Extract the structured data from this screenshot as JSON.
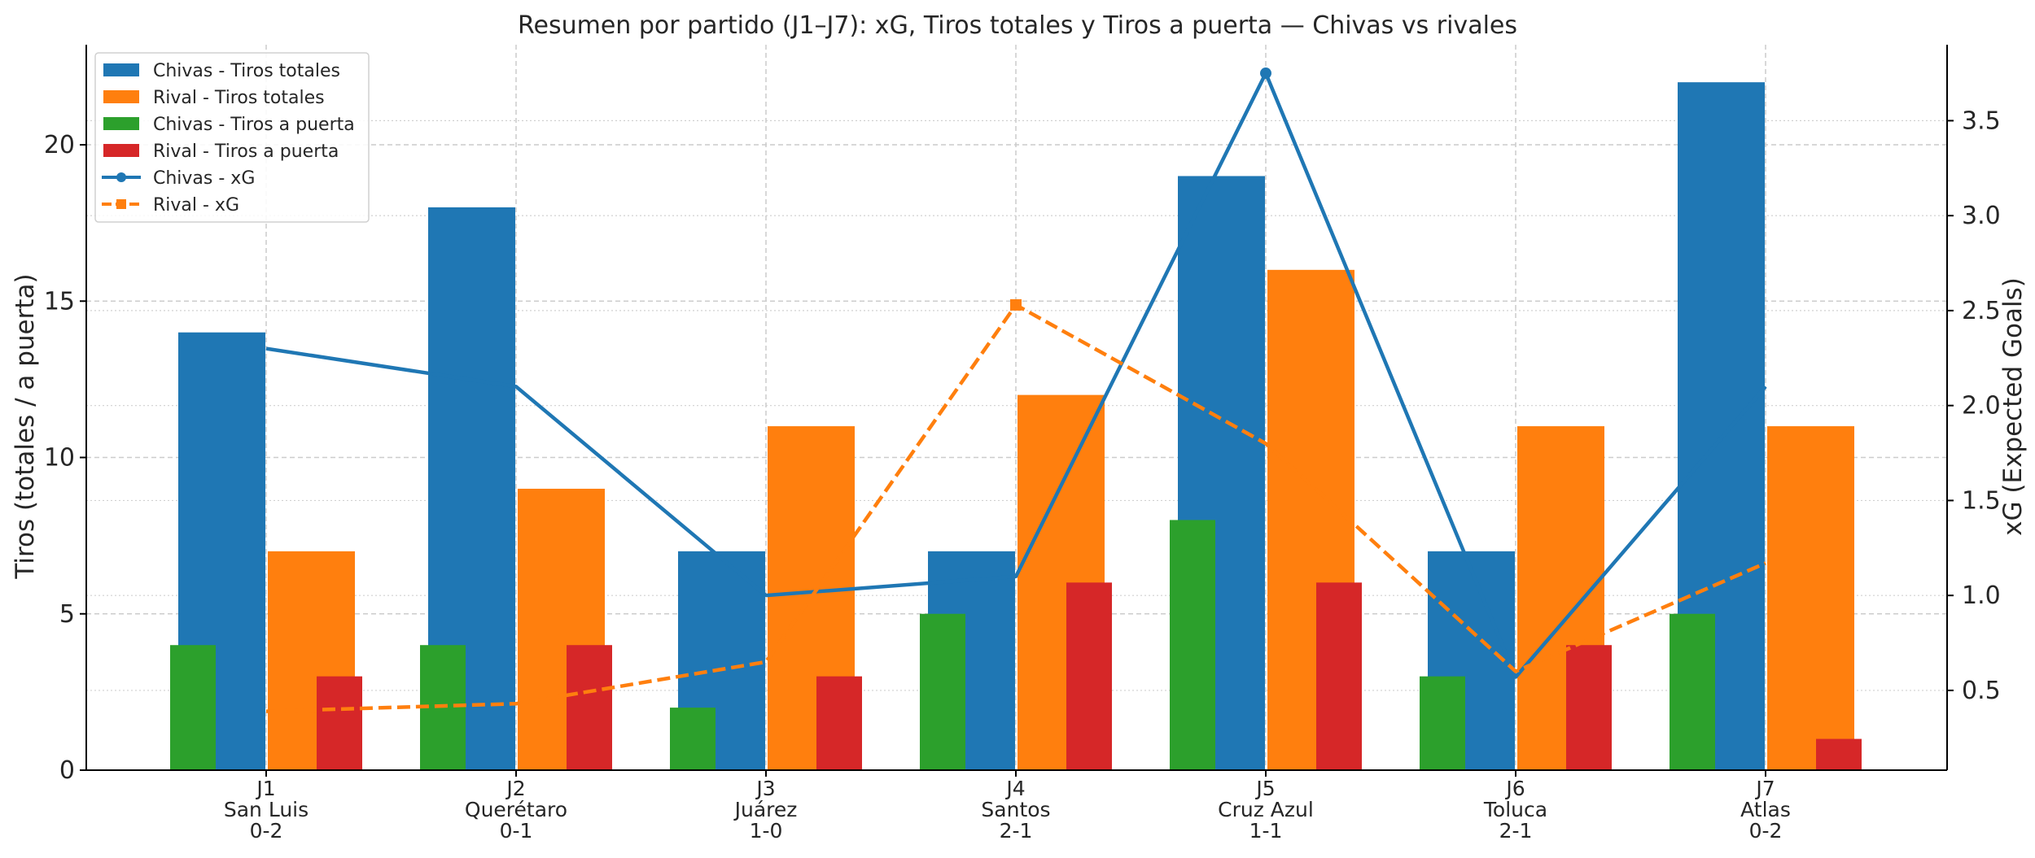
{
  "chart_data": {
    "type": "bar",
    "title": "Resumen por partido (J1–J7): xG, Tiros totales y Tiros a puerta — Chivas vs rivales",
    "ylabel_left": "Tiros (totales / a puerta)",
    "ylabel_right": "xG (Expected Goals)",
    "categories": [
      [
        "J1",
        "San Luis",
        "0-2"
      ],
      [
        "J2",
        "Querétaro",
        "0-1"
      ],
      [
        "J3",
        "Juárez",
        "1-0"
      ],
      [
        "J4",
        "Santos",
        "2-1"
      ],
      [
        "J5",
        "Cruz Azul",
        "1-1"
      ],
      [
        "J6",
        "Toluca",
        "2-1"
      ],
      [
        "J7",
        "Atlas",
        "0-2"
      ]
    ],
    "ylim_left": [
      0,
      23.2
    ],
    "ylim_right": [
      0.08,
      3.9
    ],
    "yticks_left": [
      0,
      5,
      10,
      15,
      20
    ],
    "yticks_right": [
      0.5,
      1.0,
      1.5,
      2.0,
      2.5,
      3.0,
      3.5
    ],
    "ytick_labels_left": [
      "0",
      "5",
      "10",
      "15",
      "20"
    ],
    "ytick_labels_right": [
      "0.5",
      "1.0",
      "1.5",
      "2.0",
      "2.5",
      "3.0",
      "3.5"
    ],
    "grid": true,
    "legend_position": "top-left",
    "series": [
      {
        "name": "Chivas - Tiros totales",
        "kind": "bar",
        "axis": "left",
        "color": "#1f77b4",
        "values": [
          14,
          18,
          7,
          7,
          19,
          7,
          22
        ]
      },
      {
        "name": "Rival - Tiros totales",
        "kind": "bar",
        "axis": "left",
        "color": "#ff7f0e",
        "values": [
          7,
          9,
          11,
          12,
          16,
          11,
          11
        ]
      },
      {
        "name": "Chivas - Tiros a puerta",
        "kind": "bar",
        "axis": "left",
        "color": "#2ca02c",
        "values": [
          4,
          4,
          2,
          5,
          8,
          3,
          5
        ]
      },
      {
        "name": "Rival - Tiros a puerta",
        "kind": "bar",
        "axis": "left",
        "color": "#d62728",
        "values": [
          3,
          4,
          3,
          6,
          6,
          4,
          1
        ]
      },
      {
        "name": "Chivas - xG",
        "kind": "line",
        "axis": "right",
        "color": "#1f77b4",
        "marker": "circle",
        "dash": "solid",
        "values": [
          2.3,
          2.1,
          1.0,
          1.1,
          3.75,
          0.57,
          2.1
        ]
      },
      {
        "name": "Rival - xG",
        "kind": "line",
        "axis": "right",
        "color": "#ff7f0e",
        "marker": "square",
        "dash": "dashed",
        "values": [
          0.39,
          0.43,
          0.65,
          2.53,
          1.8,
          0.6,
          1.17
        ]
      }
    ]
  }
}
